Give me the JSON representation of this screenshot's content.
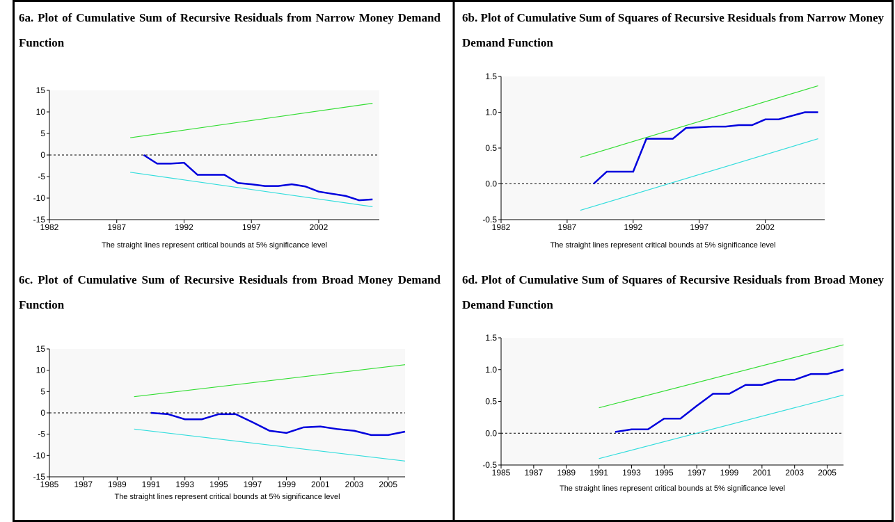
{
  "chart_data": [
    {
      "type": "line",
      "title": "6a. Plot of Cumulative Sum of Recursive Residuals from Narrow Money Demand Function",
      "note": "The straight lines represent critical bounds at 5% significance level",
      "xlim": [
        1982,
        2006.5
      ],
      "xticks": [
        1982,
        1987,
        1992,
        1997,
        2002
      ],
      "ylim": [
        -15,
        15
      ],
      "yticks": [
        15,
        10,
        5,
        0,
        -5,
        -10,
        -15
      ],
      "series": [
        {
          "color": "#33dd33",
          "x": [
            1988,
            2006
          ],
          "values": [
            4,
            12
          ]
        },
        {
          "color": "#33dddd",
          "x": [
            1988,
            2006
          ],
          "values": [
            -4,
            -12
          ]
        },
        {
          "color": "#0000dd",
          "x": [
            1989,
            1990,
            1991,
            1992,
            1993,
            1994,
            1995,
            1996,
            1997,
            1998,
            1999,
            2000,
            2001,
            2002,
            2003,
            2004,
            2005,
            2006
          ],
          "values": [
            0,
            -2,
            -2,
            -1.8,
            -4.6,
            -4.6,
            -4.6,
            -6.5,
            -6.8,
            -7.2,
            -7.2,
            -6.8,
            -7.3,
            -8.5,
            -9,
            -9.5,
            -10.5,
            -10.3
          ]
        }
      ]
    },
    {
      "type": "line",
      "title": "6b. Plot of Cumulative Sum of Squares of Recursive Residuals from Narrow Money Demand Function",
      "note": "The straight lines represent critical bounds at 5% significance level",
      "xlim": [
        1982,
        2006.5
      ],
      "xticks": [
        1982,
        1987,
        1992,
        1997,
        2002
      ],
      "ylim": [
        -0.5,
        1.5
      ],
      "yticks": [
        1.5,
        {
          "value": 1,
          "label": "1.0"
        },
        0.5,
        {
          "value": 0,
          "label": "0.0"
        },
        -0.5
      ],
      "series": [
        {
          "color": "#33dd33",
          "x": [
            1988,
            2006
          ],
          "values": [
            0.37,
            1.37
          ]
        },
        {
          "color": "#33dddd",
          "x": [
            1988,
            2006
          ],
          "values": [
            -0.37,
            0.63
          ]
        },
        {
          "color": "#0000dd",
          "x": [
            1989,
            1990,
            1991,
            1992,
            1993,
            1994,
            1995,
            1996,
            1997,
            1998,
            1999,
            2000,
            2001,
            2002,
            2003,
            2004,
            2005,
            2006
          ],
          "values": [
            0,
            0.17,
            0.17,
            0.17,
            0.63,
            0.63,
            0.63,
            0.78,
            0.79,
            0.8,
            0.8,
            0.82,
            0.82,
            0.9,
            0.9,
            0.95,
            1,
            1
          ]
        }
      ]
    },
    {
      "type": "line",
      "title": "6c. Plot of Cumulative Sum of Recursive Residuals from Broad Money Demand Function",
      "note": "The straight lines represent critical bounds at 5% significance level",
      "xlim": [
        1985,
        2006
      ],
      "xticks": [
        1985,
        1987,
        1989,
        1991,
        1993,
        1995,
        1997,
        1999,
        2001,
        2003,
        2005
      ],
      "ylim": [
        -15,
        15
      ],
      "yticks": [
        15,
        10,
        5,
        0,
        -5,
        -10,
        -15
      ],
      "series": [
        {
          "color": "#33dd33",
          "x": [
            1990,
            2006
          ],
          "values": [
            3.8,
            11.3
          ]
        },
        {
          "color": "#33dddd",
          "x": [
            1990,
            2006
          ],
          "values": [
            -3.8,
            -11.3
          ]
        },
        {
          "color": "#0000dd",
          "x": [
            1991,
            1992,
            1993,
            1994,
            1995,
            1996,
            1997,
            1998,
            1999,
            2000,
            2001,
            2002,
            2003,
            2004,
            2005,
            2006
          ],
          "values": [
            0,
            -0.3,
            -1.5,
            -1.5,
            -0.3,
            -0.3,
            -2.2,
            -4.2,
            -4.7,
            -3.4,
            -3.2,
            -3.8,
            -4.2,
            -5.2,
            -5.2,
            -4.4
          ]
        }
      ]
    },
    {
      "type": "line",
      "title": "6d. Plot of Cumulative Sum of Squares of Recursive Residuals from Broad Money Demand Function",
      "note": "The straight lines represent critical bounds at 5% significance level",
      "xlim": [
        1985,
        2006
      ],
      "xticks": [
        1985,
        1987,
        1989,
        1991,
        1993,
        1995,
        1997,
        1999,
        2001,
        2003,
        2005
      ],
      "ylim": [
        -0.5,
        1.5
      ],
      "yticks": [
        1.5,
        {
          "value": 1,
          "label": "1.0"
        },
        0.5,
        {
          "value": 0,
          "label": "0.0"
        },
        -0.5
      ],
      "series": [
        {
          "color": "#33dd33",
          "x": [
            1991,
            2006
          ],
          "values": [
            0.4,
            1.39
          ]
        },
        {
          "color": "#33dddd",
          "x": [
            1991,
            2006
          ],
          "values": [
            -0.4,
            0.6
          ]
        },
        {
          "color": "#0000dd",
          "x": [
            1992,
            1993,
            1994,
            1995,
            1996,
            1997,
            1998,
            1999,
            2000,
            2001,
            2002,
            2003,
            2004,
            2005,
            2006
          ],
          "values": [
            0.02,
            0.06,
            0.06,
            0.23,
            0.23,
            0.43,
            0.62,
            0.62,
            0.76,
            0.76,
            0.84,
            0.84,
            0.93,
            0.93,
            1
          ]
        }
      ]
    }
  ]
}
